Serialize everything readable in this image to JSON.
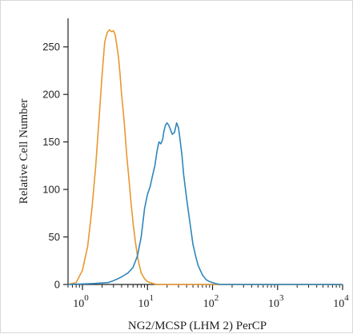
{
  "chart_data": {
    "type": "line",
    "title": "",
    "xlabel": "NG2/MCSP (LHM 2) PerCP",
    "ylabel": "Relative Cell Number",
    "x_scale": "log",
    "xlim": [
      0.6,
      10000
    ],
    "ylim": [
      0,
      280
    ],
    "y_ticks": [
      0,
      50,
      100,
      150,
      200,
      250
    ],
    "x_ticks": [
      {
        "value": 1,
        "base": "10",
        "exp": "0"
      },
      {
        "value": 10,
        "base": "10",
        "exp": "1"
      },
      {
        "value": 100,
        "base": "10",
        "exp": "2"
      },
      {
        "value": 1000,
        "base": "10",
        "exp": "3"
      },
      {
        "value": 10000,
        "base": "10",
        "exp": "4"
      }
    ],
    "grid": false,
    "legend": "none",
    "series": [
      {
        "color": "#E8982E",
        "x": [
          0.6,
          0.8,
          1.0,
          1.2,
          1.4,
          1.6,
          1.8,
          2.0,
          2.2,
          2.4,
          2.6,
          2.8,
          3.0,
          3.2,
          3.4,
          3.6,
          3.8,
          4.0,
          4.4,
          4.8,
          5.2,
          5.6,
          6.0,
          6.5,
          7.0,
          7.5,
          8.0,
          9.0,
          10.0,
          11.0,
          12.0,
          14.0,
          17.0,
          25.0,
          100.0,
          10000.0
        ],
        "y": [
          0,
          2,
          15,
          40,
          80,
          125,
          175,
          220,
          255,
          265,
          268,
          266,
          267,
          262,
          250,
          238,
          220,
          200,
          170,
          135,
          110,
          85,
          65,
          45,
          30,
          20,
          12,
          6,
          3,
          2,
          1,
          0,
          0,
          0,
          0,
          0
        ]
      },
      {
        "color": "#2E86BF",
        "x": [
          0.6,
          1.5,
          2.5,
          3.0,
          3.5,
          4.0,
          5.0,
          6.0,
          7.0,
          8.0,
          9.0,
          10.0,
          11.0,
          12.0,
          13.0,
          14.0,
          15.0,
          16.0,
          17.0,
          18.0,
          19.0,
          20.0,
          21.0,
          22.0,
          24.0,
          26.0,
          28.0,
          30.0,
          32.0,
          34.0,
          36.0,
          40.0,
          45.0,
          50.0,
          55.0,
          60.0,
          70.0,
          80.0,
          90.0,
          100.0,
          110.0,
          130.0,
          200.0,
          10000.0
        ],
        "y": [
          0,
          1,
          2,
          4,
          6,
          8,
          12,
          18,
          30,
          50,
          80,
          95,
          103,
          115,
          125,
          140,
          150,
          148,
          152,
          162,
          168,
          170,
          168,
          165,
          158,
          160,
          170,
          165,
          150,
          135,
          115,
          90,
          65,
          42,
          30,
          20,
          10,
          5,
          3,
          2,
          1,
          0,
          0,
          0
        ]
      }
    ]
  }
}
